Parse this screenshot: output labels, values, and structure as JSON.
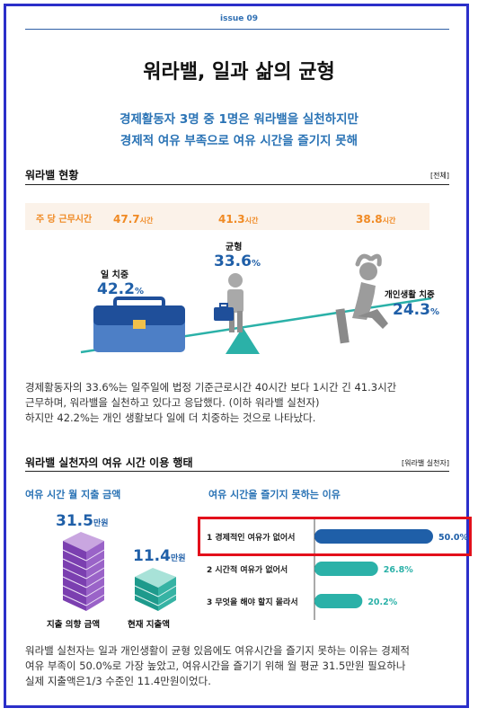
{
  "issue": "issue 09",
  "title": "워라밸, 일과 삶의 균형",
  "subtitle": [
    "경제활동자 3명 중 1명은 워라밸을 실천하지만",
    "경제적 여유 부족으로 여유 시간을 즐기지 못해"
  ],
  "section1": {
    "heading": "워라밸 현황",
    "tag": "[전체]",
    "hours": {
      "label": "주 당 근무시간",
      "unit": "시간",
      "values": [
        "47.7",
        "41.3",
        "38.8"
      ]
    },
    "work": {
      "label": "일 치중",
      "value": "42.2",
      "unit": "%"
    },
    "balance": {
      "label": "균형",
      "value": "33.6",
      "unit": "%"
    },
    "life": {
      "label": "개인생활 치중",
      "value": "24.3",
      "unit": "%"
    },
    "text": [
      "경제활동자의 33.6%는 일주일에 법정 기준근로시간 40시간 보다 1시간 긴 41.3시간",
      "근무하며, 워라밸을 실천하고 있다고 응답했다. (이하 워라밸 실천자)",
      "하지만 42.2%는 개인 생활보다 일에 더 치중하는 것으로 나타났다."
    ]
  },
  "section2": {
    "heading": "워라밸 실천자의 여유 시간 이용 행태",
    "tag": "[워라밸 실천자]",
    "spend_title": "여유 시간 월 지출 금액",
    "intent": {
      "value": "31.5",
      "unit": "만원",
      "label": "지출 의향 금액"
    },
    "actual": {
      "value": "11.4",
      "unit": "만원",
      "label": "현재 지출액"
    },
    "reasons_title": "여유 시간을 즐기지 못하는 이유",
    "text": [
      "워라밸 실천자는 일과 개인생활이 균형 있음에도 여유시간을 즐기지 못하는 이유는 경제적",
      "여유 부족이 50.0%로 가장 높았고, 여유시간을 즐기기 위해 월 평균 31.5만원 필요하나",
      "실제 지출액은1/3 수준인 11.4만원이었다."
    ]
  },
  "chart_data": {
    "type": "bar",
    "categories": [
      "1 경제적인 여유가 없어서",
      "2 시간적 여유가 없어서",
      "3 무엇을 해야 할지 몰라서"
    ],
    "values": [
      50.0,
      26.8,
      20.2
    ],
    "value_labels": [
      "50.0%",
      "26.8%",
      "20.2%"
    ],
    "colors": [
      "#1f5fa8",
      "#2bb1a8",
      "#2bb1a8"
    ],
    "title": "여유 시간을 즐기지 못하는 이유",
    "xlim": [
      0,
      50
    ]
  }
}
